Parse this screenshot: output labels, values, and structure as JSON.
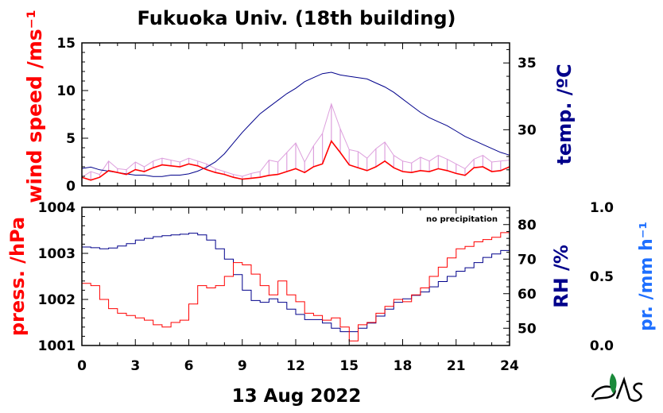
{
  "title": "Fukuoka Univ. (18th building)",
  "date_label": "13 Aug 2022",
  "note": "no precipitation",
  "colors": {
    "wind": "#ff0000",
    "wind_raw": "#dda0dd",
    "temp": "#00008b",
    "press": "#ff0000",
    "rh": "#00008b",
    "precip": "#1e6fff"
  },
  "chart_data": [
    {
      "type": "line",
      "x": [
        0,
        0.5,
        1,
        1.5,
        2,
        2.5,
        3,
        3.5,
        4,
        4.5,
        5,
        5.5,
        6,
        6.5,
        7,
        7.5,
        8,
        8.5,
        9,
        9.5,
        10,
        10.5,
        11,
        11.5,
        12,
        12.5,
        13,
        13.5,
        14,
        14.5,
        15,
        15.5,
        16,
        16.5,
        17,
        17.5,
        18,
        18.5,
        19,
        19.5,
        20,
        20.5,
        21,
        21.5,
        22,
        22.5,
        23,
        23.5,
        24
      ],
      "xlabel": "",
      "xlim": [
        0,
        24
      ],
      "xticks": [
        "0",
        "3",
        "6",
        "9",
        "12",
        "15",
        "18",
        "21",
        "24"
      ],
      "left_axis": {
        "label": "wind speed /ms⁻¹",
        "ylim": [
          0,
          15
        ],
        "ticks": [
          "0",
          "5",
          "10",
          "15"
        ]
      },
      "right_axis": {
        "label": "temp. /ºC",
        "ylim": [
          25.8,
          36.5
        ],
        "ticks": [
          "30",
          "35"
        ]
      },
      "series": [
        {
          "values": [
            0.9,
            0.6,
            0.9,
            1.6,
            1.4,
            1.2,
            1.7,
            1.5,
            1.9,
            2.2,
            2.1,
            2.0,
            2.3,
            2.1,
            1.7,
            1.4,
            1.2,
            0.9,
            0.7,
            0.8,
            0.9,
            1.1,
            1.2,
            1.5,
            1.8,
            1.4,
            2.0,
            2.3,
            4.7,
            3.5,
            2.2,
            1.9,
            1.6,
            2.0,
            2.6,
            1.9,
            1.5,
            1.4,
            1.6,
            1.5,
            1.8,
            1.6,
            1.3,
            1.1,
            1.9,
            2.0,
            1.5,
            1.6,
            2.0
          ]
        },
        {
          "values": [
            0.9,
            1.5,
            1.2,
            2.6,
            1.8,
            1.7,
            2.5,
            2.0,
            2.6,
            2.9,
            2.7,
            2.5,
            2.9,
            2.6,
            2.3,
            1.8,
            1.5,
            1.2,
            1.0,
            1.3,
            1.5,
            2.7,
            2.5,
            3.5,
            4.5,
            2.5,
            4.2,
            5.5,
            8.6,
            6.0,
            3.8,
            3.6,
            2.9,
            3.9,
            4.6,
            3.2,
            2.6,
            2.4,
            3.0,
            2.6,
            3.2,
            2.8,
            2.3,
            1.8,
            2.8,
            3.2,
            2.5,
            2.6,
            2.7
          ]
        },
        {
          "values": [
            27.1,
            27.2,
            27.0,
            26.9,
            26.8,
            26.7,
            26.6,
            26.6,
            26.5,
            26.5,
            26.6,
            26.6,
            26.7,
            26.9,
            27.2,
            27.6,
            28.2,
            29.0,
            29.8,
            30.5,
            31.2,
            31.7,
            32.2,
            32.7,
            33.1,
            33.6,
            33.9,
            34.2,
            34.3,
            34.1,
            34.0,
            33.9,
            33.8,
            33.5,
            33.2,
            32.8,
            32.3,
            31.8,
            31.3,
            30.9,
            30.6,
            30.3,
            29.9,
            29.5,
            29.2,
            28.9,
            28.6,
            28.3,
            28.1
          ]
        }
      ]
    },
    {
      "type": "line",
      "x": [
        0,
        0.5,
        1,
        1.5,
        2,
        2.5,
        3,
        3.5,
        4,
        4.5,
        5,
        5.5,
        6,
        6.5,
        7,
        7.5,
        8,
        8.5,
        9,
        9.5,
        10,
        10.5,
        11,
        11.5,
        12,
        12.5,
        13,
        13.5,
        14,
        14.5,
        15,
        15.5,
        16,
        16.5,
        17,
        17.5,
        18,
        18.5,
        19,
        19.5,
        20,
        20.5,
        21,
        21.5,
        22,
        22.5,
        23,
        23.5,
        24
      ],
      "xlabel": "",
      "xlim": [
        0,
        24
      ],
      "xticks": [
        "0",
        "3",
        "6",
        "9",
        "12",
        "15",
        "18",
        "21",
        "24"
      ],
      "left_axis": {
        "label": "press. /hPa",
        "ylim": [
          1001,
          1004
        ],
        "ticks": [
          "1001",
          "1002",
          "1003",
          "1004"
        ]
      },
      "right_axis": {
        "label": "RH /%",
        "ylim": [
          45,
          85
        ],
        "ticks": [
          "50",
          "60",
          "70",
          "80"
        ]
      },
      "far_right_axis": {
        "label": "pr. /mm h⁻¹",
        "ylim": [
          0,
          1
        ],
        "ticks": [
          "0.0",
          "0.5",
          "1.0"
        ]
      },
      "series": [
        {
          "values": [
            1002.35,
            1002.3,
            1002.0,
            1001.8,
            1001.7,
            1001.65,
            1001.6,
            1001.55,
            1001.45,
            1001.4,
            1001.5,
            1001.55,
            1001.9,
            1002.3,
            1002.25,
            1002.3,
            1002.5,
            1002.8,
            1002.75,
            1002.55,
            1002.3,
            1002.1,
            1002.4,
            1002.1,
            1001.95,
            1001.7,
            1001.65,
            1001.55,
            1001.6,
            1001.4,
            1001.1,
            1001.45,
            1001.5,
            1001.7,
            1001.85,
            1002.0,
            1001.95,
            1002.1,
            1002.25,
            1002.5,
            1002.7,
            1002.9,
            1003.1,
            1003.15,
            1003.25,
            1003.3,
            1003.35,
            1003.45,
            1003.55
          ]
        },
        {
          "values": [
            73.5,
            73.3,
            73.0,
            73.2,
            73.8,
            74.5,
            75.5,
            76.0,
            76.5,
            76.8,
            77.0,
            77.2,
            77.5,
            77.0,
            75.5,
            73.0,
            70.0,
            65.5,
            61.0,
            58.0,
            57.5,
            58.5,
            57.5,
            55.5,
            54.0,
            52.5,
            52.5,
            51.5,
            50.0,
            49.0,
            49.0,
            50.0,
            51.5,
            53.5,
            55.5,
            57.5,
            58.5,
            59.5,
            60.5,
            62.0,
            63.5,
            65.0,
            66.5,
            67.5,
            69.0,
            70.5,
            71.5,
            72.5,
            73.5
          ]
        }
      ]
    }
  ]
}
